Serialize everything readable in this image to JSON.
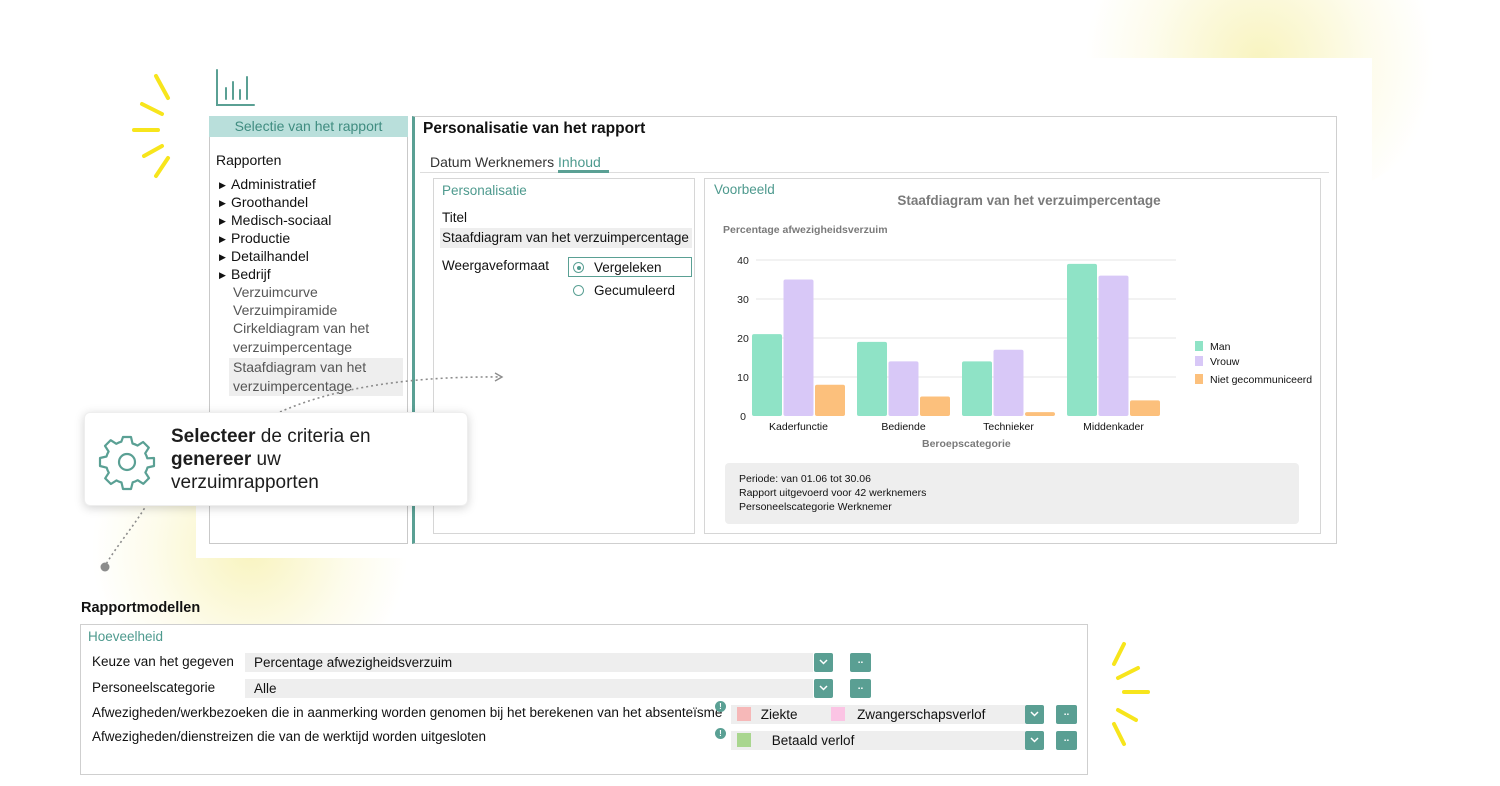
{
  "left_panel": {
    "header": "Selectie van het rapport",
    "tree_title": "Rapporten",
    "categories": [
      "Administratief",
      "Groothandel",
      "Medisch-sociaal",
      "Productie",
      "Detailhandel",
      "Bedrijf"
    ],
    "reports": [
      "Verzuimcurve",
      "Verzuimpiramide",
      "Cirkeldiagram van het",
      "verzuimpercentage",
      "Staafdiagram van het",
      "verzuimpercentage"
    ]
  },
  "main": {
    "title": "Personalisatie van het rapport",
    "tabs": [
      "Datum",
      "Werknemers",
      "Inhoud"
    ],
    "active_tab": "Inhoud",
    "personalisatie": {
      "heading": "Personalisatie",
      "titel_label": "Titel",
      "titel_value": "Staafdiagram van het verzuimpercentage",
      "format_label": "Weergaveformaat",
      "options": [
        "Vergeleken",
        "Gecumuleerd"
      ],
      "selected_option": "Vergeleken"
    },
    "voorbeeld": {
      "heading": "Voorbeeld",
      "info_lines": [
        "Periode: van 01.06 tot 30.06",
        "Rapport uitgevoerd voor 42 werknemers",
        "Personeelscategorie Werknemer"
      ]
    }
  },
  "chart_data": {
    "type": "bar",
    "title": "Staafdiagram van het verzuimpercentage",
    "ylabel": "Percentage afwezigheidsverzuim",
    "xlabel": "Beroepscategorie",
    "categories": [
      "Kaderfunctie",
      "Bediende",
      "Technieker",
      "Middenkader"
    ],
    "yticks": [
      0,
      10,
      20,
      30,
      40
    ],
    "ylim": [
      0,
      40
    ],
    "series": [
      {
        "name": "Man",
        "values": [
          21,
          19,
          14,
          39
        ],
        "color": "#8fe3c6"
      },
      {
        "name": "Vrouw",
        "values": [
          35,
          14,
          17,
          36
        ],
        "color": "#d8c8f7"
      },
      {
        "name": "Niet gecommuniceerd",
        "values": [
          8,
          5,
          1,
          4
        ],
        "color": "#fcc07c"
      }
    ],
    "grid": true,
    "legend": "right"
  },
  "callout": {
    "bold1": "Selecteer",
    "text1": " de criteria en",
    "bold2": "genereer",
    "text2": " uw",
    "text3": "verzuimrapporten"
  },
  "rapportmodellen": {
    "title": "Rapportmodellen",
    "subtitle": "Hoeveelheid",
    "rows": [
      {
        "label": "Keuze van het gegeven",
        "value": "Percentage afwezigheidsverzuim"
      },
      {
        "label": "Personeelscategorie",
        "value": "Alle"
      },
      {
        "label": "Afwezigheden/werkbezoeken die in aanmerking worden genomen bij het berekenen van het absenteïsme",
        "chips": [
          "Ziekte",
          "Zwangerschapsverlof"
        ]
      },
      {
        "label": "Afwezigheden/dienstreizen die van de werktijd worden uitgesloten",
        "chips": [
          "Betaald verlof"
        ]
      }
    ],
    "more_label": "..",
    "info_mark": "!",
    "chip_colors": [
      "#f6b8b8",
      "#fbc4e4",
      "#a9d68f"
    ]
  }
}
